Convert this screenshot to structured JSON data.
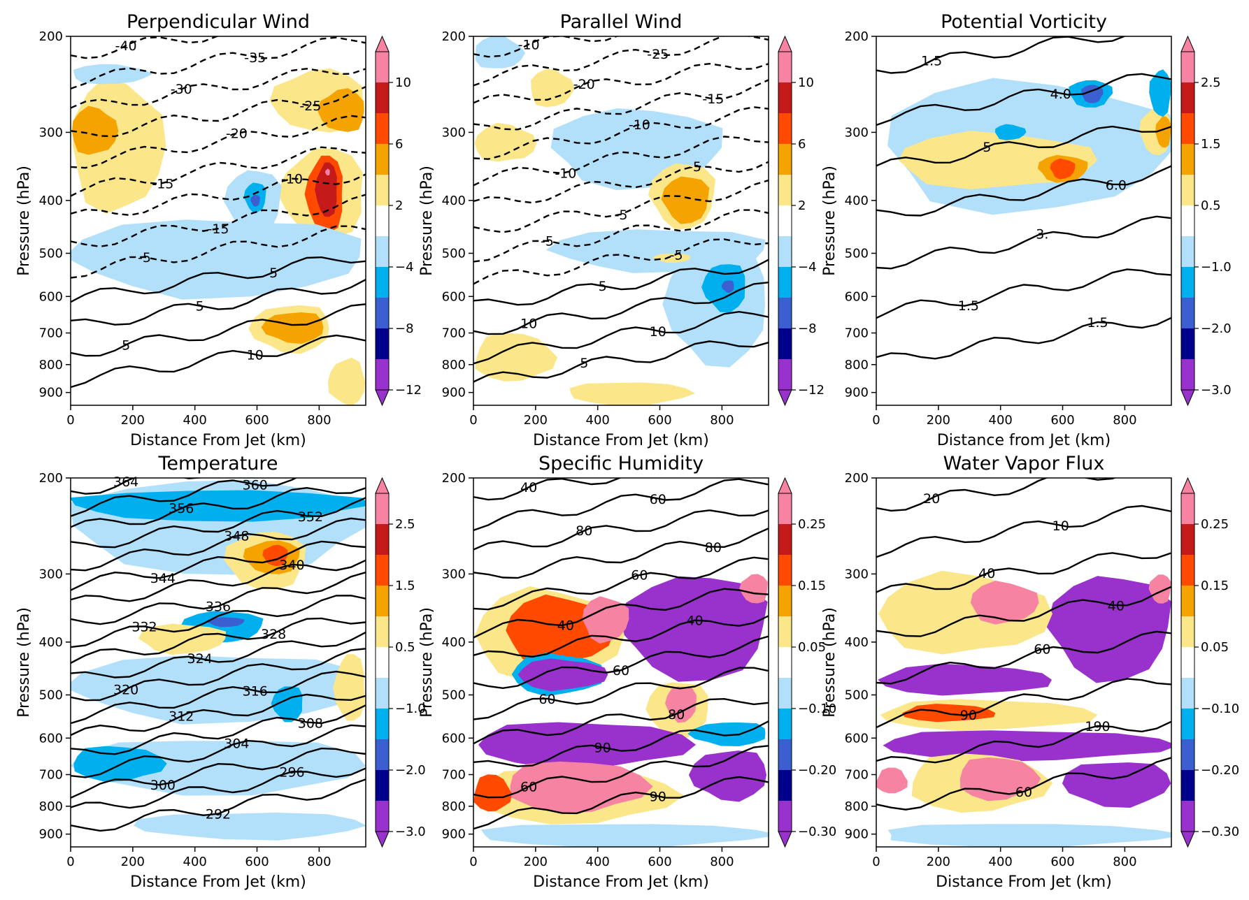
{
  "palette": [
    "#9932cc",
    "#00008b",
    "#3b5fd1",
    "#00b0ee",
    "#b2e0fa",
    "#ffffff",
    "#fbe68a",
    "#f5a300",
    "#ff4a00",
    "#c41a1a",
    "#f783a3"
  ],
  "chart_data": [
    {
      "type": "contour",
      "title": "Perpendicular Wind",
      "xlabel": "Distance From Jet (km)",
      "ylabel": "Pressure (hPa)",
      "xlim": [
        0,
        950
      ],
      "ylim": [
        950,
        200
      ],
      "yscale": "log",
      "x_ticks": [
        "0",
        "200",
        "400",
        "600",
        "800"
      ],
      "y_ticks": [
        "200",
        "300",
        "400",
        "500",
        "600",
        "700",
        "800",
        "900"
      ],
      "colorbar_ticks": [
        "10",
        "6",
        "2",
        "−4",
        "−8",
        "−12"
      ],
      "contour_labels": [
        "-40",
        "-35",
        "-30",
        "-25",
        "-20",
        "-15",
        "-10",
        "-15",
        "-5",
        "5",
        "5",
        "5",
        "10"
      ],
      "regions": [
        {
          "color": 6,
          "x": [
            0,
            300
          ],
          "y": [
            240,
            420
          ]
        },
        {
          "color": 7,
          "x": [
            0,
            150
          ],
          "y": [
            270,
            330
          ]
        },
        {
          "color": 4,
          "x": [
            0,
            250
          ],
          "y": [
            225,
            245
          ]
        },
        {
          "color": 6,
          "x": [
            650,
            950
          ],
          "y": [
            230,
            300
          ]
        },
        {
          "color": 7,
          "x": [
            800,
            950
          ],
          "y": [
            250,
            300
          ]
        },
        {
          "color": 6,
          "x": [
            680,
            950
          ],
          "y": [
            320,
            470
          ]
        },
        {
          "color": 8,
          "x": [
            760,
            880
          ],
          "y": [
            330,
            460
          ]
        },
        {
          "color": 9,
          "x": [
            790,
            860
          ],
          "y": [
            340,
            430
          ]
        },
        {
          "color": 10,
          "x": [
            820,
            835
          ],
          "y": [
            350,
            360
          ]
        },
        {
          "color": 4,
          "x": [
            500,
            680
          ],
          "y": [
            350,
            460
          ]
        },
        {
          "color": 3,
          "x": [
            560,
            630
          ],
          "y": [
            370,
            420
          ]
        },
        {
          "color": 2,
          "x": [
            580,
            610
          ],
          "y": [
            390,
            410
          ]
        },
        {
          "color": 6,
          "x": [
            580,
            840
          ],
          "y": [
            620,
            760
          ]
        },
        {
          "color": 7,
          "x": [
            620,
            820
          ],
          "y": [
            640,
            730
          ]
        },
        {
          "color": 4,
          "x": [
            0,
            950
          ],
          "y": [
            430,
            600
          ]
        },
        {
          "color": 6,
          "x": [
            830,
            950
          ],
          "y": [
            780,
            950
          ]
        }
      ]
    },
    {
      "type": "contour",
      "title": "Parallel Wind",
      "xlabel": "Distance From Jet (km)",
      "ylabel": "Pressure (hPa)",
      "xlim": [
        0,
        950
      ],
      "ylim": [
        950,
        200
      ],
      "yscale": "log",
      "x_ticks": [
        "0",
        "200",
        "400",
        "600",
        "800"
      ],
      "y_ticks": [
        "200",
        "300",
        "400",
        "500",
        "600",
        "700",
        "800",
        "900"
      ],
      "colorbar_ticks": [
        "10",
        "6",
        "2",
        "−4",
        "−8",
        "−12"
      ],
      "contour_labels": [
        "-10",
        "-25",
        "-20",
        "-15",
        "-10",
        "-10",
        "-5",
        "-5",
        "-5",
        "-5",
        "5",
        "10",
        "10",
        "5"
      ],
      "regions": [
        {
          "color": 4,
          "x": [
            0,
            160
          ],
          "y": [
            200,
            230
          ]
        },
        {
          "color": 6,
          "x": [
            180,
            320
          ],
          "y": [
            230,
            270
          ]
        },
        {
          "color": 6,
          "x": [
            0,
            200
          ],
          "y": [
            290,
            340
          ]
        },
        {
          "color": 4,
          "x": [
            250,
            800
          ],
          "y": [
            270,
            380
          ]
        },
        {
          "color": 6,
          "x": [
            570,
            780
          ],
          "y": [
            340,
            450
          ]
        },
        {
          "color": 7,
          "x": [
            610,
            760
          ],
          "y": [
            360,
            440
          ]
        },
        {
          "color": 4,
          "x": [
            250,
            950
          ],
          "y": [
            450,
            540
          ]
        },
        {
          "color": 4,
          "x": [
            620,
            950
          ],
          "y": [
            480,
            800
          ]
        },
        {
          "color": 3,
          "x": [
            740,
            880
          ],
          "y": [
            520,
            640
          ]
        },
        {
          "color": 2,
          "x": [
            800,
            840
          ],
          "y": [
            560,
            590
          ]
        },
        {
          "color": 6,
          "x": [
            0,
            260
          ],
          "y": [
            700,
            860
          ]
        },
        {
          "color": 6,
          "x": [
            300,
            700
          ],
          "y": [
            860,
            950
          ]
        },
        {
          "color": 6,
          "x": [
            580,
            700
          ],
          "y": [
            500,
            520
          ]
        }
      ]
    },
    {
      "type": "contour",
      "title": "Potential Vorticity",
      "xlabel": "Distance from Jet (km)",
      "ylabel": "Pressure (hPa)",
      "xlim": [
        0,
        950
      ],
      "ylim": [
        950,
        200
      ],
      "yscale": "log",
      "x_ticks": [
        "0",
        "200",
        "400",
        "600",
        "800"
      ],
      "y_ticks": [
        "200",
        "300",
        "400",
        "500",
        "600",
        "700",
        "800",
        "900"
      ],
      "colorbar_ticks": [
        "2.5",
        "1.5",
        "0.5",
        "−1.0",
        "−2.0",
        "−3.0"
      ],
      "contour_labels": [
        "1.5",
        "4.0",
        "5",
        "6.0",
        "3.",
        "1.5",
        "1.5"
      ],
      "regions": [
        {
          "color": 4,
          "x": [
            20,
            950
          ],
          "y": [
            240,
            420
          ]
        },
        {
          "color": 6,
          "x": [
            60,
            700
          ],
          "y": [
            300,
            380
          ]
        },
        {
          "color": 6,
          "x": [
            850,
            950
          ],
          "y": [
            270,
            330
          ]
        },
        {
          "color": 7,
          "x": [
            900,
            950
          ],
          "y": [
            280,
            320
          ]
        },
        {
          "color": 7,
          "x": [
            520,
            680
          ],
          "y": [
            330,
            370
          ]
        },
        {
          "color": 8,
          "x": [
            560,
            640
          ],
          "y": [
            335,
            365
          ]
        },
        {
          "color": 3,
          "x": [
            620,
            760
          ],
          "y": [
            240,
            270
          ]
        },
        {
          "color": 2,
          "x": [
            660,
            730
          ],
          "y": [
            245,
            265
          ]
        },
        {
          "color": 3,
          "x": [
            380,
            480
          ],
          "y": [
            290,
            310
          ]
        },
        {
          "color": 3,
          "x": [
            880,
            950
          ],
          "y": [
            230,
            280
          ]
        }
      ]
    },
    {
      "type": "contour",
      "title": "Temperature",
      "xlabel": "Distance From Jet (km)",
      "ylabel": "Pressure (hPa)",
      "xlim": [
        0,
        950
      ],
      "ylim": [
        950,
        200
      ],
      "yscale": "log",
      "x_ticks": [
        "0",
        "200",
        "400",
        "600",
        "800"
      ],
      "y_ticks": [
        "200",
        "300",
        "400",
        "500",
        "600",
        "700",
        "800",
        "900"
      ],
      "colorbar_ticks": [
        "2.5",
        "1.5",
        "0.5",
        "−1.0",
        "−2.0",
        "−3.0"
      ],
      "contour_labels": [
        "364",
        "360",
        "356",
        "352",
        "348",
        "344",
        "340",
        "336",
        "332",
        "328",
        "324",
        "320",
        "316",
        "312",
        "308",
        "304",
        "300",
        "296",
        "292"
      ],
      "regions": [
        {
          "color": 4,
          "x": [
            0,
            950
          ],
          "y": [
            200,
            300
          ]
        },
        {
          "color": 3,
          "x": [
            0,
            950
          ],
          "y": [
            210,
            240
          ]
        },
        {
          "color": 6,
          "x": [
            500,
            760
          ],
          "y": [
            250,
            320
          ]
        },
        {
          "color": 7,
          "x": [
            560,
            740
          ],
          "y": [
            260,
            300
          ]
        },
        {
          "color": 8,
          "x": [
            620,
            700
          ],
          "y": [
            265,
            290
          ]
        },
        {
          "color": 3,
          "x": [
            360,
            620
          ],
          "y": [
            350,
            400
          ]
        },
        {
          "color": 2,
          "x": [
            440,
            560
          ],
          "y": [
            360,
            375
          ]
        },
        {
          "color": 6,
          "x": [
            220,
            500
          ],
          "y": [
            370,
            420
          ]
        },
        {
          "color": 4,
          "x": [
            0,
            950
          ],
          "y": [
            420,
            560
          ]
        },
        {
          "color": 3,
          "x": [
            650,
            750
          ],
          "y": [
            480,
            560
          ]
        },
        {
          "color": 4,
          "x": [
            0,
            950
          ],
          "y": [
            600,
            760
          ]
        },
        {
          "color": 3,
          "x": [
            0,
            300
          ],
          "y": [
            620,
            720
          ]
        },
        {
          "color": 4,
          "x": [
            200,
            950
          ],
          "y": [
            820,
            920
          ]
        },
        {
          "color": 6,
          "x": [
            850,
            950
          ],
          "y": [
            420,
            560
          ]
        }
      ]
    },
    {
      "type": "contour",
      "title": "Specific Humidity",
      "xlabel": "Distance From Jet (km)",
      "ylabel": "Pressure (hPa)",
      "xlim": [
        0,
        950
      ],
      "ylim": [
        950,
        200
      ],
      "yscale": "log",
      "x_ticks": [
        "0",
        "200",
        "400",
        "600",
        "800"
      ],
      "y_ticks": [
        "200",
        "300",
        "400",
        "500",
        "600",
        "700",
        "800",
        "900"
      ],
      "colorbar_ticks": [
        "0.25",
        "0.15",
        "0.05",
        "−0.10",
        "−0.20",
        "−0.30"
      ],
      "contour_labels": [
        "40",
        "60",
        "80",
        "80",
        "60",
        "40",
        "40",
        "60",
        "60",
        "80",
        "90",
        "60",
        "90"
      ],
      "regions": [
        {
          "color": 0,
          "x": [
            480,
            950
          ],
          "y": [
            300,
            470
          ]
        },
        {
          "color": 10,
          "x": [
            860,
            950
          ],
          "y": [
            300,
            340
          ]
        },
        {
          "color": 6,
          "x": [
            0,
            480
          ],
          "y": [
            320,
            470
          ]
        },
        {
          "color": 8,
          "x": [
            100,
            450
          ],
          "y": [
            330,
            440
          ]
        },
        {
          "color": 10,
          "x": [
            350,
            500
          ],
          "y": [
            330,
            400
          ]
        },
        {
          "color": 3,
          "x": [
            120,
            420
          ],
          "y": [
            420,
            500
          ]
        },
        {
          "color": 0,
          "x": [
            140,
            430
          ],
          "y": [
            430,
            490
          ]
        },
        {
          "color": 6,
          "x": [
            560,
            760
          ],
          "y": [
            470,
            600
          ]
        },
        {
          "color": 10,
          "x": [
            620,
            720
          ],
          "y": [
            480,
            560
          ]
        },
        {
          "color": 0,
          "x": [
            0,
            700
          ],
          "y": [
            560,
            680
          ]
        },
        {
          "color": 3,
          "x": [
            700,
            950
          ],
          "y": [
            560,
            620
          ]
        },
        {
          "color": 0,
          "x": [
            700,
            950
          ],
          "y": [
            630,
            780
          ]
        },
        {
          "color": 6,
          "x": [
            0,
            650
          ],
          "y": [
            680,
            860
          ]
        },
        {
          "color": 10,
          "x": [
            100,
            560
          ],
          "y": [
            660,
            820
          ]
        },
        {
          "color": 8,
          "x": [
            0,
            120
          ],
          "y": [
            700,
            820
          ]
        },
        {
          "color": 4,
          "x": [
            0,
            950
          ],
          "y": [
            860,
            950
          ]
        }
      ]
    },
    {
      "type": "contour",
      "title": "Water Vapor Flux",
      "xlabel": "Distance From Jet (km)",
      "ylabel": "Pressure (hPa)",
      "xlim": [
        0,
        950
      ],
      "ylim": [
        950,
        200
      ],
      "yscale": "log",
      "x_ticks": [
        "0",
        "200",
        "400",
        "600",
        "800"
      ],
      "y_ticks": [
        "200",
        "300",
        "400",
        "500",
        "600",
        "700",
        "800",
        "900"
      ],
      "colorbar_ticks": [
        "0.25",
        "0.15",
        "0.05",
        "−0.10",
        "−0.20",
        "−0.30"
      ],
      "contour_labels": [
        "20",
        "10",
        "40",
        "40",
        "60",
        "90",
        "190",
        "60"
      ],
      "regions": [
        {
          "color": 0,
          "x": [
            560,
            950
          ],
          "y": [
            300,
            470
          ]
        },
        {
          "color": 10,
          "x": [
            880,
            950
          ],
          "y": [
            300,
            340
          ]
        },
        {
          "color": 6,
          "x": [
            0,
            560
          ],
          "y": [
            300,
            420
          ]
        },
        {
          "color": 10,
          "x": [
            300,
            520
          ],
          "y": [
            310,
            370
          ]
        },
        {
          "color": 0,
          "x": [
            0,
            560
          ],
          "y": [
            440,
            500
          ]
        },
        {
          "color": 6,
          "x": [
            0,
            700
          ],
          "y": [
            510,
            580
          ]
        },
        {
          "color": 8,
          "x": [
            80,
            380
          ],
          "y": [
            520,
            560
          ]
        },
        {
          "color": 0,
          "x": [
            0,
            950
          ],
          "y": [
            580,
            660
          ]
        },
        {
          "color": 0,
          "x": [
            600,
            950
          ],
          "y": [
            660,
            800
          ]
        },
        {
          "color": 6,
          "x": [
            100,
            550
          ],
          "y": [
            640,
            820
          ]
        },
        {
          "color": 10,
          "x": [
            260,
            520
          ],
          "y": [
            650,
            780
          ]
        },
        {
          "color": 10,
          "x": [
            0,
            100
          ],
          "y": [
            680,
            760
          ]
        },
        {
          "color": 4,
          "x": [
            0,
            950
          ],
          "y": [
            860,
            950
          ]
        }
      ]
    }
  ]
}
